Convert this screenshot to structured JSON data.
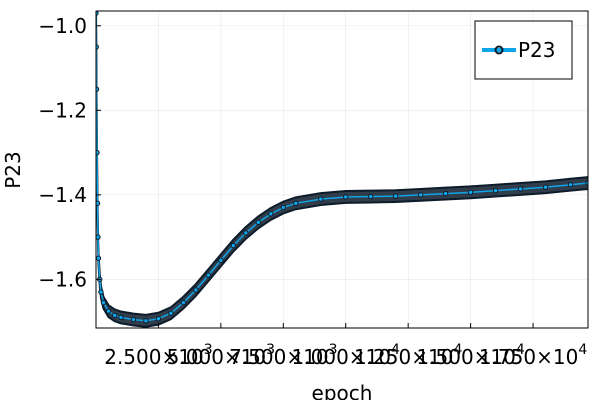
{
  "chart_data": {
    "type": "line",
    "title": "",
    "xlabel": "epoch",
    "ylabel": "P23",
    "xlim": [
      1,
      19700
    ],
    "ylim": [
      -1.715,
      -0.965
    ],
    "grid": true,
    "legend_position": "top-right",
    "y_ticks": [
      {
        "value": -1.0,
        "label": "−1.0"
      },
      {
        "value": -1.2,
        "label": "−1.2"
      },
      {
        "value": -1.4,
        "label": "−1.4"
      },
      {
        "value": -1.6,
        "label": "−1.6"
      }
    ],
    "x_ticks": [
      {
        "value": 2500,
        "mantissa": "2.500×10",
        "exponent": "3"
      },
      {
        "value": 5000,
        "mantissa": "5.000×10",
        "exponent": "3"
      },
      {
        "value": 7500,
        "mantissa": "7.500×10",
        "exponent": "3"
      },
      {
        "value": 10000,
        "mantissa": "1.000×10",
        "exponent": "4"
      },
      {
        "value": 12500,
        "mantissa": "1.250×10",
        "exponent": "4"
      },
      {
        "value": 15000,
        "mantissa": "1.500×10",
        "exponent": "4"
      },
      {
        "value": 17500,
        "mantissa": "1.750×10",
        "exponent": "4"
      }
    ],
    "series": [
      {
        "name": "P23",
        "color": "#0ea5e9",
        "marker_color": "#0d1b2a",
        "band_halfwidth": 0.014,
        "x": [
          1,
          10,
          20,
          40,
          60,
          80,
          100,
          150,
          200,
          300,
          500,
          750,
          1000,
          1500,
          2000,
          2500,
          3000,
          3500,
          4000,
          4500,
          5000,
          5500,
          6000,
          6500,
          7000,
          7500,
          8000,
          9000,
          10000,
          11000,
          12000,
          13000,
          14000,
          15000,
          16000,
          17000,
          18000,
          19000,
          19700
        ],
        "values": [
          -0.97,
          -1.05,
          -1.15,
          -1.3,
          -1.42,
          -1.5,
          -1.55,
          -1.6,
          -1.63,
          -1.655,
          -1.675,
          -1.685,
          -1.69,
          -1.695,
          -1.698,
          -1.693,
          -1.68,
          -1.655,
          -1.625,
          -1.59,
          -1.555,
          -1.52,
          -1.49,
          -1.465,
          -1.445,
          -1.43,
          -1.42,
          -1.41,
          -1.405,
          -1.404,
          -1.403,
          -1.4,
          -1.397,
          -1.394,
          -1.39,
          -1.386,
          -1.382,
          -1.376,
          -1.372
        ]
      }
    ]
  }
}
